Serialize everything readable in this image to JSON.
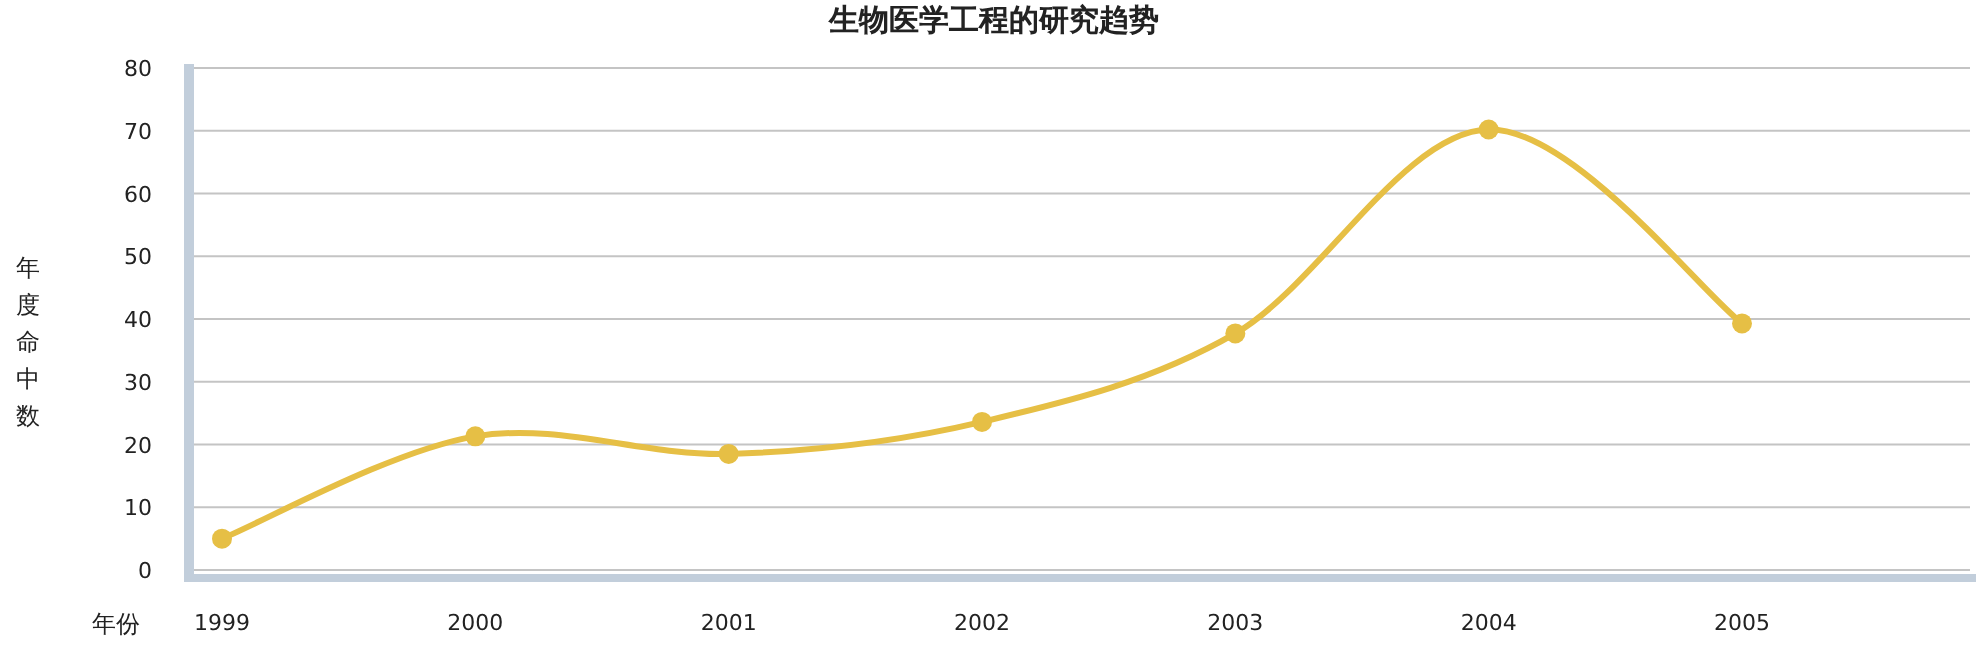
{
  "chart_data": {
    "type": "line",
    "title": "生物医学工程的研究趋势",
    "xlabel": "年份",
    "ylabel": "年度命中数",
    "categories": [
      "1999",
      "2000",
      "2001",
      "2002",
      "2003",
      "2004",
      "2005"
    ],
    "series": [
      {
        "color": "#e6bf45",
        "values": [
          5,
          21.3,
          18.5,
          23.6,
          37.7,
          70.2,
          39.3
        ]
      }
    ],
    "ylim": [
      0,
      80
    ],
    "yticks": [
      0,
      10,
      20,
      30,
      40,
      50,
      60,
      70,
      80
    ],
    "grid": "y",
    "marker": "circle"
  }
}
